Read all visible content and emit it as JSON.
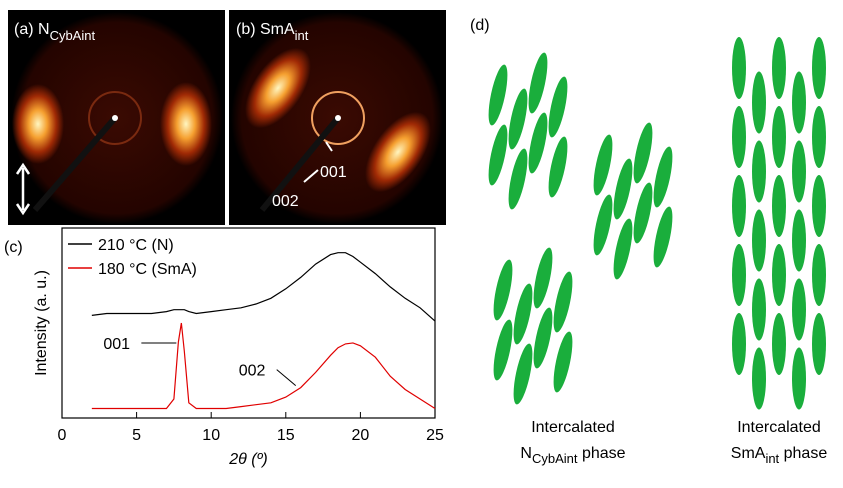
{
  "panel_a": {
    "label": "(a) N",
    "subscript": "CybAint"
  },
  "panel_b": {
    "label": "(b) SmA",
    "subscript": "int",
    "annotations": [
      "001",
      "002"
    ]
  },
  "panel_c": {
    "label": "(c)"
  },
  "panel_d": {
    "label": "(d)",
    "captions": [
      {
        "line1": "Intercalated",
        "main": "N",
        "subscript": "CybAint",
        "tail": " phase"
      },
      {
        "line1": "Intercalated",
        "main": "SmA",
        "subscript": "int",
        "tail": " phase"
      }
    ]
  },
  "chart_data": {
    "type": "line",
    "xlabel": "2θ (º)",
    "ylabel": "Intensity (a. u.)",
    "x": [
      2,
      3,
      4,
      5,
      6,
      7,
      7.5,
      7.8,
      8,
      8.2,
      8.5,
      9,
      10,
      11,
      12,
      13,
      14,
      15,
      16,
      17,
      18,
      18.5,
      19,
      19.5,
      20,
      21,
      22,
      23,
      24,
      25
    ],
    "series": [
      {
        "name": "210 °C (N)",
        "color": "#000000",
        "values": [
          54,
          55,
          55,
          55,
          55,
          56,
          57,
          57,
          57,
          57,
          56,
          55,
          56,
          57,
          58,
          60,
          63,
          68,
          74,
          81,
          86,
          87,
          87,
          85,
          82,
          76,
          69,
          63,
          58,
          51
        ]
      },
      {
        "name": "180 °C (SmA)",
        "color": "#e00000",
        "values": [
          5,
          5,
          5,
          5,
          5,
          5,
          10,
          40,
          50,
          35,
          8,
          5,
          5,
          5,
          6,
          7,
          8,
          11,
          16,
          24,
          33,
          37,
          39,
          39.5,
          38,
          32,
          22,
          15,
          10,
          5
        ]
      }
    ],
    "annotations": [
      {
        "text": "001",
        "x": 8,
        "y": 50
      },
      {
        "text": "002",
        "x": 16,
        "y": 16
      }
    ],
    "xlim": [
      0,
      25
    ],
    "xticks": [
      0,
      5,
      10,
      15,
      20,
      25
    ],
    "ylim": [
      0,
      100
    ]
  }
}
